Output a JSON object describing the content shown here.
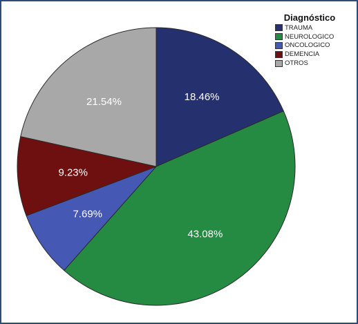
{
  "chart_data": {
    "type": "pie",
    "legend_title": "Diagnóstico",
    "legend_position": "top-right",
    "start_angle": "top, clockwise",
    "slices": [
      {
        "label": "TRAUMA",
        "value": 18.46,
        "display": "18.46%",
        "color": "#25316e"
      },
      {
        "label": "NEUROLOGICO",
        "value": 43.08,
        "display": "43.08%",
        "color": "#268b42"
      },
      {
        "label": "ONCOLOGICO",
        "value": 7.69,
        "display": "7.69%",
        "color": "#4558b4"
      },
      {
        "label": "DEMENCIA",
        "value": 9.23,
        "display": "9.23%",
        "color": "#6e0f10"
      },
      {
        "label": "OTROS",
        "value": 21.54,
        "display": "21.54%",
        "color": "#a9a8a8"
      }
    ]
  }
}
